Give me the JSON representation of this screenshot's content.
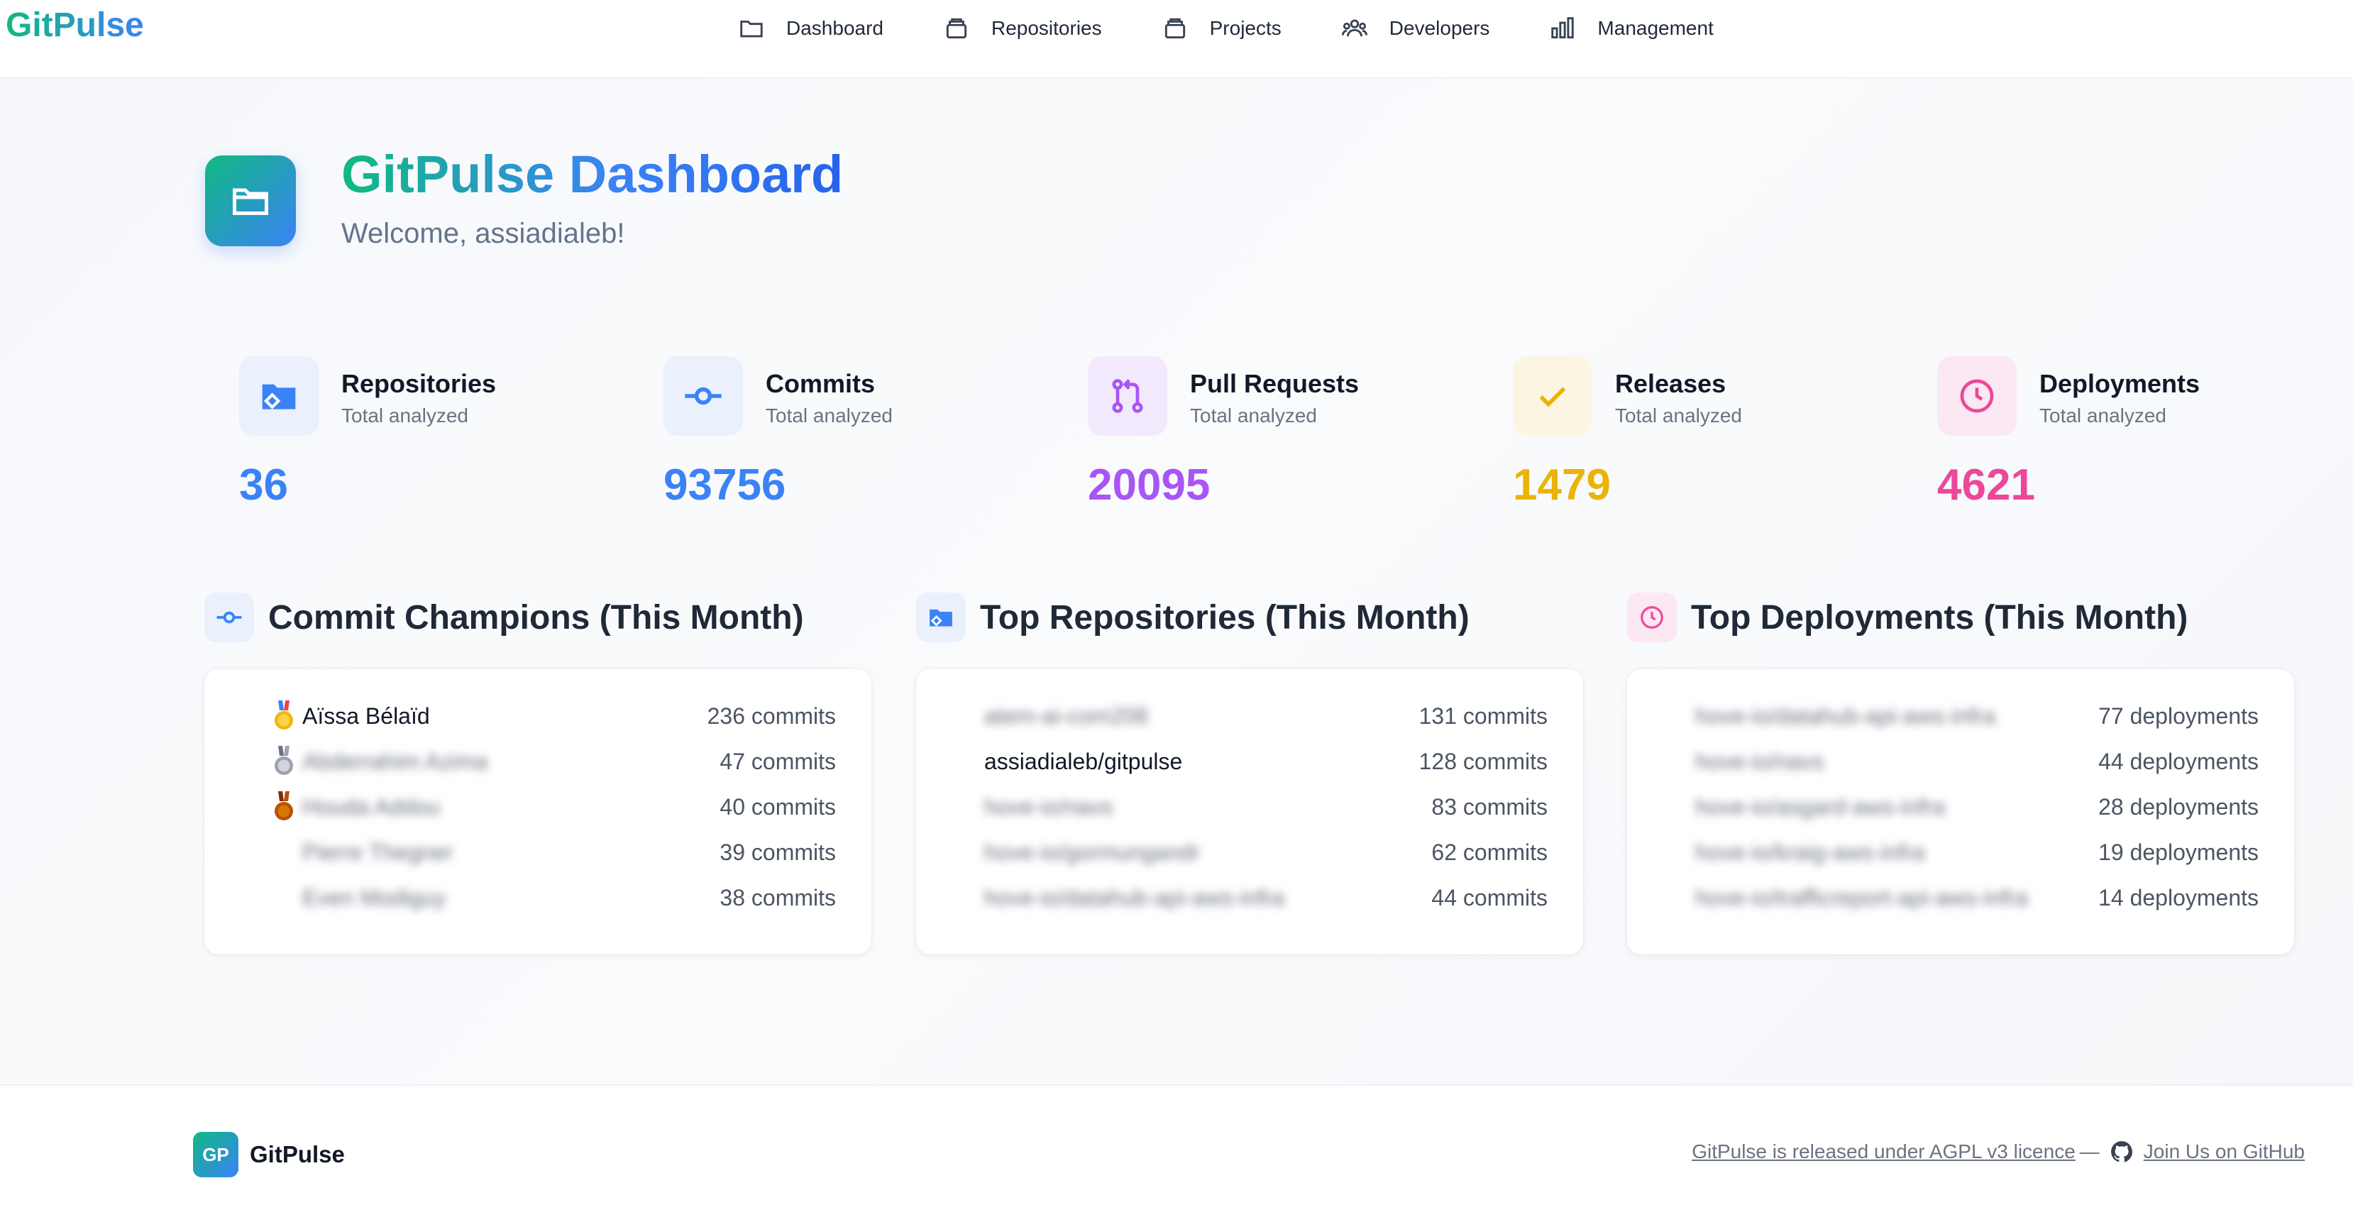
{
  "brand": "GitPulse",
  "nav": [
    {
      "label": "Dashboard",
      "icon": "folder-icon"
    },
    {
      "label": "Repositories",
      "icon": "archive-icon"
    },
    {
      "label": "Projects",
      "icon": "archive-icon"
    },
    {
      "label": "Developers",
      "icon": "users-icon"
    },
    {
      "label": "Management",
      "icon": "bar-chart-icon"
    }
  ],
  "hero": {
    "title": "GitPulse Dashboard",
    "subtitle": "Welcome, assiadialeb!"
  },
  "stats": [
    {
      "label": "Repositories",
      "sub": "Total analyzed",
      "value": "36",
      "color": "#3b82f6",
      "bg": "#eaf1fd",
      "icon": "repo-icon"
    },
    {
      "label": "Commits",
      "sub": "Total analyzed",
      "value": "93756",
      "color": "#3b82f6",
      "bg": "#eaf1fd",
      "icon": "commit-icon"
    },
    {
      "label": "Pull Requests",
      "sub": "Total analyzed",
      "value": "20095",
      "color": "#a855f7",
      "bg": "#f3e9fd",
      "icon": "pull-request-icon"
    },
    {
      "label": "Releases",
      "sub": "Total analyzed",
      "value": "1479",
      "color": "#eab308",
      "bg": "#fbf5e2",
      "icon": "check-icon"
    },
    {
      "label": "Deployments",
      "sub": "Total analyzed",
      "value": "4621",
      "color": "#ec4899",
      "bg": "#fce8f2",
      "icon": "clock-icon"
    }
  ],
  "sections": {
    "champions": {
      "title": "Commit Champions (This Month)",
      "rows": [
        {
          "name": "Aïssa Bélaïd",
          "value": "236 commits",
          "blur": false
        },
        {
          "name": "Abderrahim Azima",
          "value": "47 commits",
          "blur": true
        },
        {
          "name": "Houda Addou",
          "value": "40 commits",
          "blur": true
        },
        {
          "name": "Pierre Thegner",
          "value": "39 commits",
          "blur": true
        },
        {
          "name": "Even Modiguy",
          "value": "38 commits",
          "blur": true
        }
      ]
    },
    "repos": {
      "title": "Top Repositories (This Month)",
      "rows": [
        {
          "name": "atem-ai-com208",
          "value": "131 commits",
          "blur": true
        },
        {
          "name": "assiadialeb/gitpulse",
          "value": "128 commits",
          "blur": false
        },
        {
          "name": "hove-io/navs",
          "value": "83 commits",
          "blur": true
        },
        {
          "name": "hove-io/gormungandr",
          "value": "62 commits",
          "blur": true
        },
        {
          "name": "hove-io/datahub-api-aws-infra",
          "value": "44 commits",
          "blur": true
        }
      ]
    },
    "deployments": {
      "title": "Top Deployments (This Month)",
      "rows": [
        {
          "name": "hove-io/datahub-api-aws-infra",
          "value": "77 deployments",
          "blur": true
        },
        {
          "name": "hove-io/navs",
          "value": "44 deployments",
          "blur": true
        },
        {
          "name": "hove-io/asgard-aws-infra",
          "value": "28 deployments",
          "blur": true
        },
        {
          "name": "hove-io/kraig-aws-infra",
          "value": "19 deployments",
          "blur": true
        },
        {
          "name": "hove-io/trafficreport-api-aws-infra",
          "value": "14 deployments",
          "blur": true
        }
      ]
    }
  },
  "footer": {
    "logo": "GP",
    "brand": "GitPulse",
    "licence": "GitPulse is released under AGPL v3 licence",
    "separator": "—",
    "github": "Join Us on GitHub"
  }
}
